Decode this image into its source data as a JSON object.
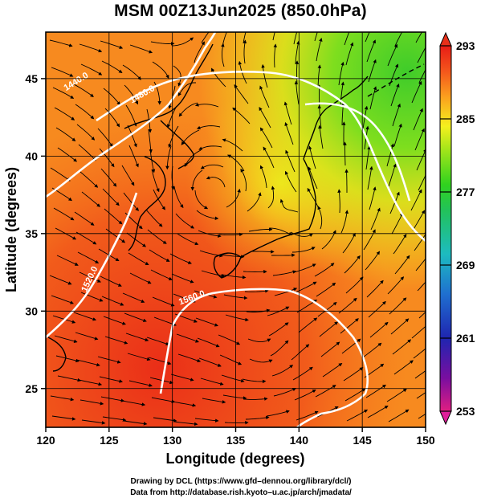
{
  "title": "MSM 00Z13Jun2025 (850.0hPa)",
  "map": {
    "lon_range": [
      120,
      150
    ],
    "lat_range": [
      22.5,
      48
    ],
    "x_ticks": [
      120,
      125,
      130,
      135,
      140,
      145,
      150
    ],
    "y_ticks": [
      25,
      30,
      35,
      40,
      45
    ],
    "x_label": "Longitude (degrees)",
    "y_label": "Latitude  (degrees)",
    "grid": true,
    "field": "temperature shading with streamlines and white contours",
    "contour_labels": [
      "1440.0",
      "1480.0",
      "1520.0",
      "1560.0"
    ]
  },
  "colorbar": {
    "ticks": [
      293,
      285,
      277,
      269,
      261,
      253
    ],
    "min": 253,
    "max": 293,
    "colors": [
      "#e01e82",
      "#7a0ea0",
      "#1f25b0",
      "#1f6fd0",
      "#1dbbc0",
      "#22c25a",
      "#30d21e",
      "#a8e61a",
      "#f5f01e",
      "#fba01e",
      "#f4561c",
      "#e81c16"
    ]
  },
  "credits": {
    "line1": "Drawing by DCL (https://www.gfd–dennou.org/library/dcl/)",
    "line2": "Data from http://database.rish.kyoto–u.ac.jp/arch/jmadata/"
  }
}
